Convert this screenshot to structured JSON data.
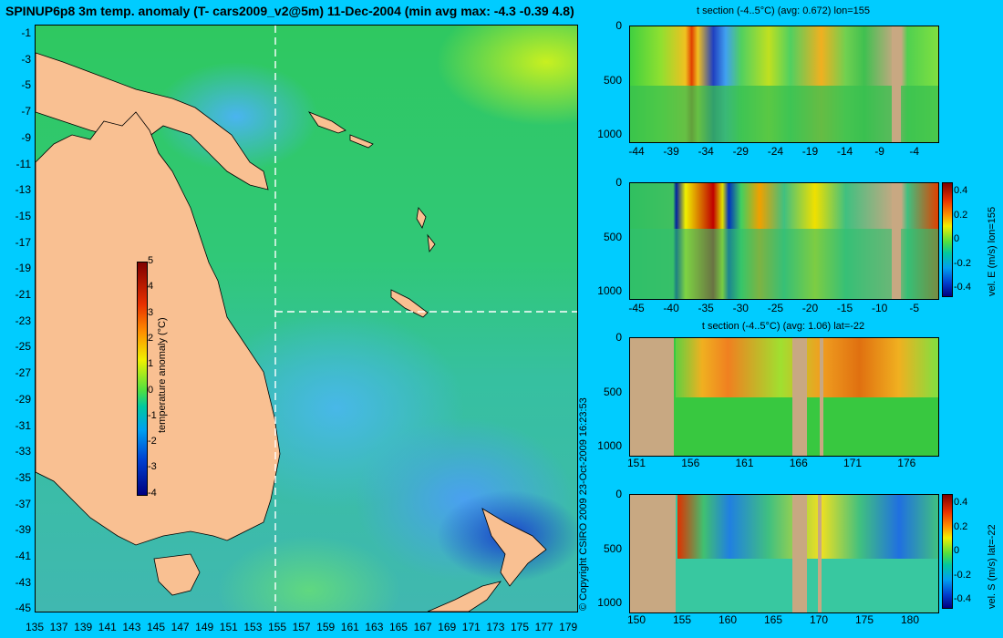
{
  "title": "SPINUP6p8 3m temp. anomaly (T- cars2009_v2@5m) 11-Dec-2004 (min avg max: -4.3 -0.39 4.8)",
  "map": {
    "y_ticks": [
      "-1",
      "-3",
      "-5",
      "-7",
      "-9",
      "-11",
      "-13",
      "-15",
      "-17",
      "-19",
      "-21",
      "-23",
      "-25",
      "-27",
      "-29",
      "-31",
      "-33",
      "-35",
      "-37",
      "-39",
      "-41",
      "-43",
      "-45"
    ],
    "x_ticks": [
      "135",
      "137",
      "139",
      "141",
      "143",
      "145",
      "147",
      "149",
      "151",
      "153",
      "155",
      "157",
      "159",
      "161",
      "163",
      "165",
      "167",
      "169",
      "171",
      "173",
      "175",
      "177",
      "179"
    ],
    "colorbar": {
      "label": "temperature anomaly (°C)",
      "ticks": [
        "5",
        "4",
        "3",
        "2",
        "1",
        "0",
        "-1",
        "-2",
        "-3",
        "-4"
      ]
    },
    "copyright": "© Copyright CSIRO 2009   23-Oct-2009 16:23:53"
  },
  "panels": [
    {
      "title": "t section (-4..5°C) (avg: 0.672) lon=155",
      "y_ticks": [
        "0",
        "500",
        "1000"
      ],
      "x_ticks": [
        "-44",
        "-39",
        "-34",
        "-29",
        "-24",
        "-19",
        "-14",
        "-9",
        "-4"
      ]
    },
    {
      "title": "",
      "y_ticks": [
        "0",
        "500",
        "1000"
      ],
      "x_ticks": [
        "-45",
        "-40",
        "-35",
        "-30",
        "-25",
        "-20",
        "-15",
        "-10",
        "-5"
      ],
      "side_label": "vel. E (m/s) lon=155",
      "colorbar_ticks": [
        "0.4",
        "0.2",
        "0",
        "-0.2",
        "-0.4"
      ]
    },
    {
      "title": "t section (-4..5°C) (avg: 1.06) lat=-22",
      "y_ticks": [
        "0",
        "500",
        "1000"
      ],
      "x_ticks": [
        "151",
        "156",
        "161",
        "166",
        "171",
        "176"
      ]
    },
    {
      "title": "",
      "y_ticks": [
        "0",
        "500",
        "1000"
      ],
      "x_ticks": [
        "150",
        "155",
        "160",
        "165",
        "170",
        "175",
        "180"
      ],
      "side_label": "vel. S (m/s) lat=-22",
      "colorbar_ticks": [
        "0.4",
        "0.2",
        "0",
        "-0.2",
        "-0.4"
      ]
    }
  ]
}
